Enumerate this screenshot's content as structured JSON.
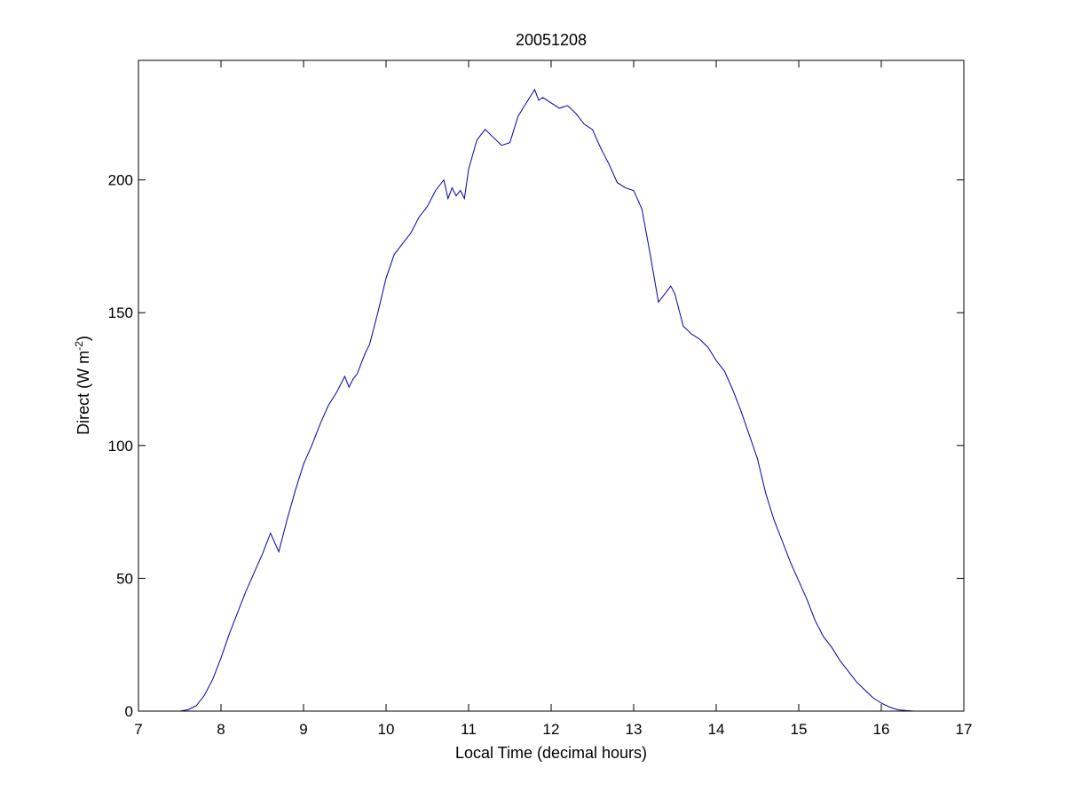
{
  "chart_data": {
    "type": "line",
    "title": "20051208",
    "xlabel": "Local Time (decimal hours)",
    "ylabel": {
      "main": "Direct (W m",
      "superscript": "-2",
      "close": ")"
    },
    "xlim": [
      7,
      17
    ],
    "ylim": [
      0,
      245
    ],
    "xticks": [
      7,
      8,
      9,
      10,
      11,
      12,
      13,
      14,
      15,
      16,
      17
    ],
    "yticks": [
      0,
      50,
      100,
      150,
      200
    ],
    "grid": false,
    "line_color": "#0000a8",
    "series": [
      {
        "x": [
          7.5,
          7.6,
          7.7,
          7.8,
          7.9,
          8.0,
          8.1,
          8.2,
          8.3,
          8.4,
          8.5,
          8.6,
          8.7,
          8.75,
          8.8,
          8.9,
          9.0,
          9.1,
          9.2,
          9.3,
          9.4,
          9.5,
          9.55,
          9.6,
          9.65,
          9.7,
          9.75,
          9.8,
          9.9,
          10.0,
          10.1,
          10.2,
          10.3,
          10.4,
          10.5,
          10.6,
          10.7,
          10.75,
          10.8,
          10.85,
          10.9,
          10.95,
          11.0,
          11.1,
          11.2,
          11.3,
          11.4,
          11.5,
          11.6,
          11.7,
          11.8,
          11.85,
          11.9,
          12.0,
          12.1,
          12.2,
          12.3,
          12.4,
          12.5,
          12.6,
          12.7,
          12.8,
          12.9,
          13.0,
          13.1,
          13.2,
          13.3,
          13.4,
          13.45,
          13.5,
          13.6,
          13.7,
          13.8,
          13.9,
          14.0,
          14.1,
          14.2,
          14.3,
          14.4,
          14.5,
          14.6,
          14.7,
          14.8,
          14.9,
          15.0,
          15.1,
          15.2,
          15.3,
          15.4,
          15.5,
          15.6,
          15.7,
          15.8,
          15.9,
          16.0,
          16.1,
          16.2,
          16.3,
          16.4,
          16.5,
          16.55
        ],
        "y": [
          0,
          0.5,
          2,
          6,
          12,
          20,
          29,
          37,
          45,
          52,
          59,
          67,
          60,
          66,
          72,
          83,
          93,
          100,
          108,
          115,
          120,
          126,
          122,
          125,
          127,
          131,
          135,
          138,
          150,
          163,
          172,
          176,
          180,
          186,
          190,
          196,
          200,
          193,
          197,
          194,
          196,
          193,
          204,
          215,
          219,
          216,
          213,
          214,
          224,
          229,
          234,
          230,
          231,
          229,
          227,
          228,
          225,
          221,
          219,
          212,
          206,
          199,
          197,
          196,
          189,
          172,
          154,
          158,
          160,
          157,
          145,
          142,
          140,
          137,
          132,
          128,
          121,
          113,
          104,
          95,
          82,
          72,
          64,
          56,
          49,
          42,
          34,
          28,
          24,
          19,
          15,
          11,
          8,
          5,
          3,
          1.5,
          0.5,
          0.2,
          0,
          0,
          0
        ]
      }
    ]
  }
}
